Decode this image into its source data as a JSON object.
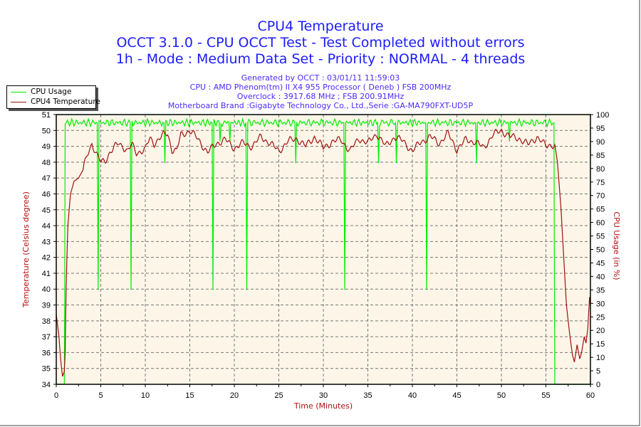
{
  "header": {
    "title": "CPU4 Temperature",
    "line2": "OCCT 3.1.0 - CPU OCCT Test - Test Completed without errors",
    "line3": "1h - Mode : Medium Data Set - Priority : NORMAL - 4 threads"
  },
  "info": {
    "generated": "Generated by OCCT : 03/01/11 11:59:03",
    "cpu": "CPU : AMD Phenom(tm) II X4 955 Processor ( Deneb ) FSB 200MHz",
    "overclock": "Overclock : 3917.68 MHz ; FSB 200.91MHz",
    "motherboard": "Motherboard Brand :Gigabyte Technology Co., Ltd.,Serie :GA-MA790FXT-UD5P"
  },
  "legend": {
    "items": [
      {
        "label": "CPU Usage",
        "color": "#00ee00"
      },
      {
        "label": "CPU4 Temperature",
        "color": "#a01010"
      }
    ]
  },
  "chart_data": {
    "type": "line",
    "title": "CPU4 Temperature",
    "xlabel": "Time (Minutes)",
    "ylabel": "Temperature (Celsius degree)",
    "y2label": "CPU Usage (in %)",
    "xlim": [
      0,
      60
    ],
    "ylim": [
      34,
      51
    ],
    "y2lim": [
      0,
      100
    ],
    "xticks": [
      0,
      5,
      10,
      15,
      20,
      25,
      30,
      35,
      40,
      45,
      50,
      55,
      60
    ],
    "yticks": [
      34,
      35,
      36,
      37,
      38,
      39,
      40,
      41,
      42,
      43,
      44,
      45,
      46,
      47,
      48,
      49,
      50,
      51
    ],
    "y2ticks": [
      0,
      5,
      10,
      15,
      20,
      25,
      30,
      35,
      40,
      45,
      50,
      55,
      60,
      65,
      70,
      75,
      80,
      85,
      90,
      95,
      100
    ],
    "grid": true,
    "legend_position": "top-left",
    "plot_background": "#fdf6e8",
    "series": [
      {
        "name": "CPU4 Temperature",
        "axis": "left",
        "color": "#a01010",
        "points": [
          [
            0,
            38.4
          ],
          [
            0.3,
            37
          ],
          [
            0.5,
            35.5
          ],
          [
            0.7,
            34.5
          ],
          [
            0.9,
            34.8
          ],
          [
            1.0,
            36
          ],
          [
            1.1,
            40
          ],
          [
            1.3,
            44
          ],
          [
            1.6,
            46
          ],
          [
            2,
            46.8
          ],
          [
            2.5,
            47
          ],
          [
            3,
            47.5
          ],
          [
            3.5,
            48.5
          ],
          [
            4,
            49.2
          ],
          [
            4.5,
            48.5
          ],
          [
            5,
            48
          ],
          [
            5.5,
            48.1
          ],
          [
            6,
            48.6
          ],
          [
            7,
            49.2
          ],
          [
            7.5,
            49
          ],
          [
            8,
            48.7
          ],
          [
            8.5,
            49.1
          ],
          [
            9,
            48.6
          ],
          [
            10,
            48.8
          ],
          [
            10.5,
            49.5
          ],
          [
            11,
            49.2
          ],
          [
            12,
            49.7
          ],
          [
            12.5,
            49.8
          ],
          [
            13,
            48.8
          ],
          [
            13.5,
            48.7
          ],
          [
            14,
            49.7
          ],
          [
            15,
            50
          ],
          [
            16,
            49.4
          ],
          [
            17,
            48.6
          ],
          [
            18,
            49.2
          ],
          [
            19,
            49.4
          ],
          [
            20,
            48.9
          ],
          [
            21,
            49.2
          ],
          [
            22,
            49
          ],
          [
            23,
            49.6
          ],
          [
            24,
            49.2
          ],
          [
            25,
            48.7
          ],
          [
            26,
            49.3
          ],
          [
            27,
            49.5
          ],
          [
            28,
            49
          ],
          [
            29,
            49.6
          ],
          [
            30,
            48.9
          ],
          [
            31,
            49.3
          ],
          [
            32,
            49.4
          ],
          [
            33,
            48.7
          ],
          [
            34,
            49.5
          ],
          [
            35,
            49.2
          ],
          [
            36,
            49.8
          ],
          [
            37,
            49
          ],
          [
            38,
            49.6
          ],
          [
            39,
            49.3
          ],
          [
            40,
            48.7
          ],
          [
            41,
            49.3
          ],
          [
            42,
            49.6
          ],
          [
            43,
            49.2
          ],
          [
            44,
            49.8
          ],
          [
            45,
            48.8
          ],
          [
            46,
            49.4
          ],
          [
            47,
            49.3
          ],
          [
            48,
            48.9
          ],
          [
            49,
            49.7
          ],
          [
            50,
            50
          ],
          [
            51,
            49.6
          ],
          [
            52,
            49.5
          ],
          [
            53,
            49.1
          ],
          [
            54,
            49.6
          ],
          [
            55,
            49
          ],
          [
            55.5,
            49.1
          ],
          [
            56,
            49.1
          ],
          [
            56.3,
            48
          ],
          [
            56.7,
            45
          ],
          [
            57,
            42
          ],
          [
            57.3,
            39
          ],
          [
            57.7,
            37
          ],
          [
            58,
            35.8
          ],
          [
            58.2,
            35.4
          ],
          [
            58.5,
            36.5
          ],
          [
            58.8,
            35.6
          ],
          [
            59,
            36
          ],
          [
            59.3,
            37
          ],
          [
            59.5,
            36.6
          ],
          [
            59.7,
            37.5
          ],
          [
            59.9,
            39.5
          ],
          [
            60,
            39
          ]
        ]
      },
      {
        "name": "CPU Usage",
        "axis": "right",
        "color": "#00ee00",
        "points": [
          [
            0,
            0
          ],
          [
            0.9,
            0
          ],
          [
            0.95,
            40
          ],
          [
            1.0,
            97
          ],
          [
            4.6,
            97
          ],
          [
            4.7,
            35
          ],
          [
            4.8,
            97
          ],
          [
            8.3,
            97
          ],
          [
            8.4,
            35
          ],
          [
            8.5,
            97
          ],
          [
            12.1,
            97
          ],
          [
            12.2,
            82
          ],
          [
            12.3,
            97
          ],
          [
            17.5,
            97
          ],
          [
            17.6,
            35
          ],
          [
            17.7,
            97
          ],
          [
            18.3,
            97
          ],
          [
            18.4,
            90
          ],
          [
            18.5,
            97
          ],
          [
            19.4,
            97
          ],
          [
            19.5,
            90
          ],
          [
            19.6,
            97
          ],
          [
            21.3,
            97
          ],
          [
            21.4,
            35
          ],
          [
            21.5,
            97
          ],
          [
            26.8,
            97
          ],
          [
            26.9,
            82
          ],
          [
            27.0,
            97
          ],
          [
            32.3,
            97
          ],
          [
            32.4,
            35
          ],
          [
            32.5,
            97
          ],
          [
            36.1,
            97
          ],
          [
            36.2,
            82
          ],
          [
            36.3,
            97
          ],
          [
            38.1,
            97
          ],
          [
            38.2,
            82
          ],
          [
            38.3,
            97
          ],
          [
            41.5,
            97
          ],
          [
            41.6,
            35
          ],
          [
            41.7,
            97
          ],
          [
            47.1,
            97
          ],
          [
            47.2,
            82
          ],
          [
            47.3,
            97
          ],
          [
            50.8,
            97
          ],
          [
            50.9,
            90
          ],
          [
            51.0,
            97
          ],
          [
            55.9,
            97
          ],
          [
            55.95,
            40
          ],
          [
            56.0,
            0
          ],
          [
            60,
            0
          ]
        ]
      }
    ]
  }
}
